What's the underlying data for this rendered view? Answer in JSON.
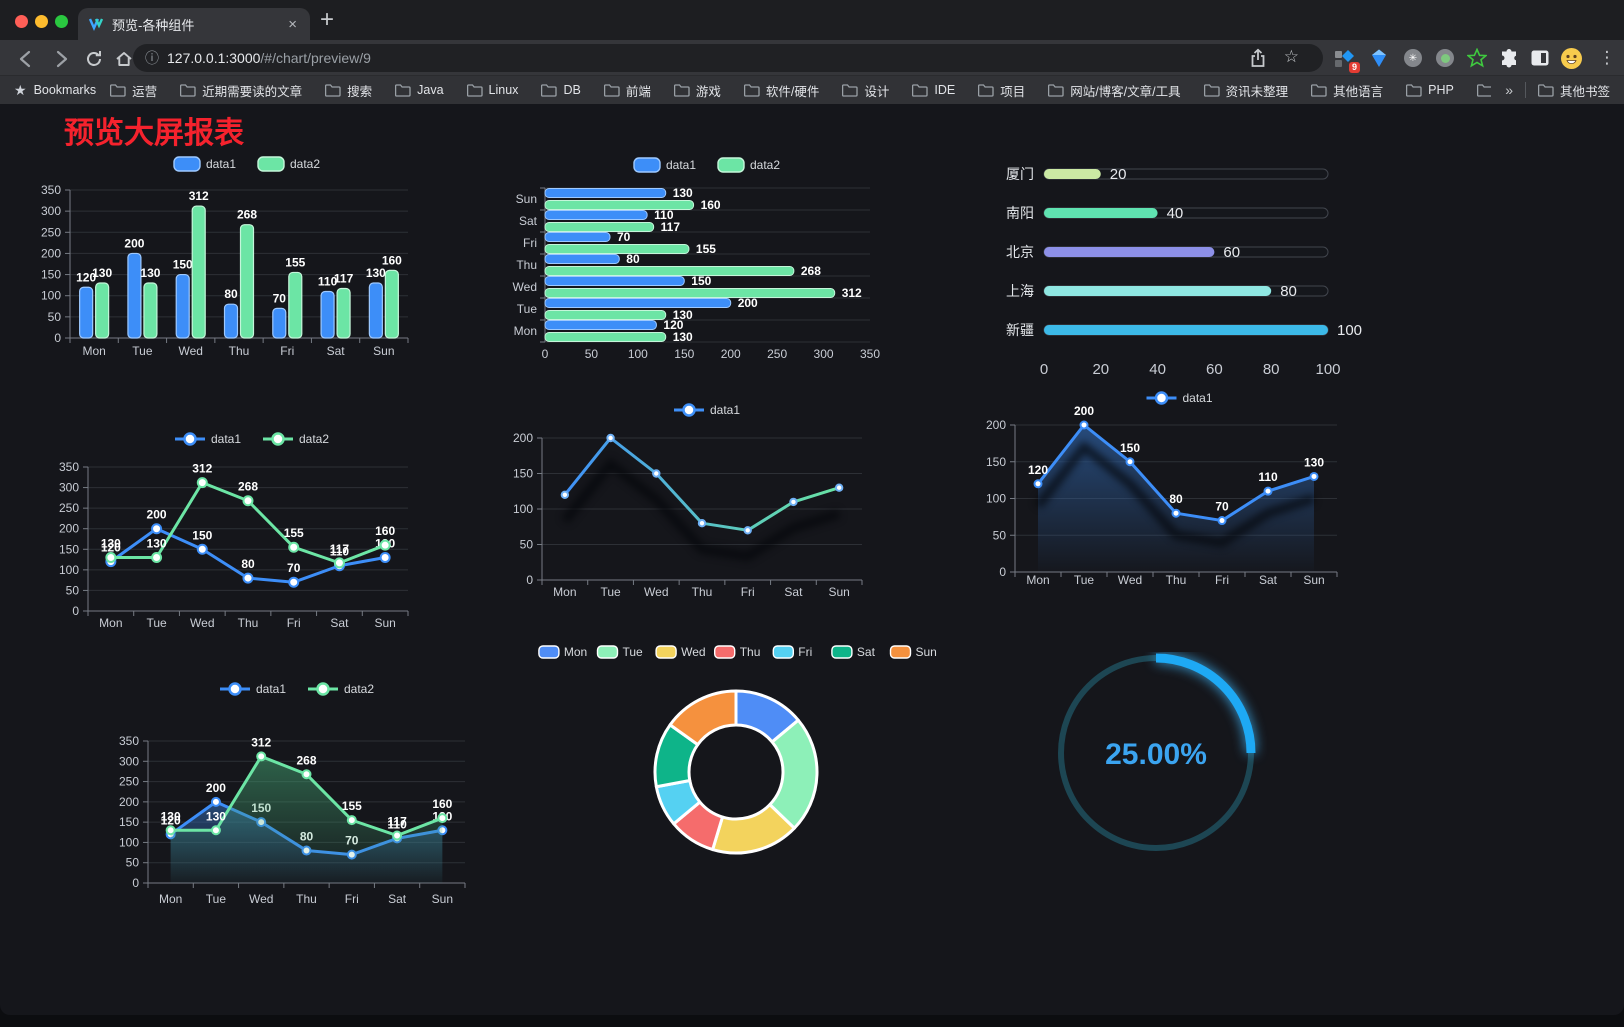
{
  "browser": {
    "tab_title": "预览-各种组件",
    "url": {
      "host": "127.0.0.1:3000",
      "path": "/#/chart/preview/9"
    },
    "bookmarks_bar": {
      "star_label": "Bookmarks",
      "folders": [
        "运营",
        "近期需要读的文章",
        "搜索",
        "Java",
        "Linux",
        "DB",
        "前端",
        "游戏",
        "软件/硬件",
        "设计",
        "IDE",
        "项目",
        "网站/博客/文章/工具",
        "资讯未整理",
        "其他语言",
        "PHP",
        "文件服务器"
      ],
      "overflow_chevron": "»",
      "other_bookmarks": "其他书签"
    },
    "extension_badge": "9"
  },
  "icons": {
    "close": "×",
    "plus": "+",
    "menu": "⋮",
    "info": "ⓘ",
    "star": "★",
    "star_outline": "☆",
    "asterisk": "✳"
  },
  "page": {
    "title": "预览大屏报表",
    "title_color": "#f5222d"
  },
  "chart_data": [
    {
      "id": "grouped-bar",
      "type": "bar",
      "categories": [
        "Mon",
        "Tue",
        "Wed",
        "Thu",
        "Fri",
        "Sat",
        "Sun"
      ],
      "series": [
        {
          "name": "data1",
          "color": "#3d8ef8",
          "edge": "#9ec9ff",
          "values": [
            120,
            200,
            150,
            80,
            70,
            110,
            130
          ]
        },
        {
          "name": "data2",
          "color": "#6ce5a5",
          "edge": "#c4f6da",
          "values": [
            130,
            130,
            312,
            268,
            155,
            117,
            160
          ]
        }
      ],
      "ylim": [
        0,
        350
      ],
      "yticks": [
        0,
        50,
        100,
        150,
        200,
        250,
        300,
        350
      ],
      "legend_position": "top",
      "grid": true,
      "show_labels": true
    },
    {
      "id": "horizontal-bar",
      "type": "hbar",
      "categories": [
        "Sun",
        "Sat",
        "Fri",
        "Thu",
        "Wed",
        "Tue",
        "Mon"
      ],
      "series": [
        {
          "name": "data1",
          "color": "#3d8ef8",
          "edge": "#9ec9ff",
          "values": [
            130,
            110,
            70,
            80,
            150,
            200,
            120
          ]
        },
        {
          "name": "data2",
          "color": "#6ce5a5",
          "edge": "#c4f6da",
          "values": [
            160,
            117,
            155,
            268,
            312,
            130,
            130
          ]
        }
      ],
      "xlim": [
        0,
        350
      ],
      "xticks": [
        0,
        50,
        100,
        150,
        200,
        250,
        300,
        350
      ],
      "legend_position": "top",
      "grid": true,
      "show_labels": true
    },
    {
      "id": "progress-bars",
      "type": "progress",
      "categories": [
        "厦门",
        "南阳",
        "北京",
        "上海",
        "新疆"
      ],
      "values": [
        20,
        40,
        60,
        80,
        100
      ],
      "colors": [
        "#cbe9a4",
        "#5fe3b1",
        "#8d90e8",
        "#8fe7e2",
        "#3cb9e8"
      ],
      "xlim": [
        0,
        100
      ],
      "xticks": [
        0,
        20,
        40,
        60,
        80,
        100
      ]
    },
    {
      "id": "line-dual",
      "type": "line",
      "categories": [
        "Mon",
        "Tue",
        "Wed",
        "Thu",
        "Fri",
        "Sat",
        "Sun"
      ],
      "series": [
        {
          "name": "data1",
          "color": "#3d8ef8",
          "values": [
            120,
            200,
            150,
            80,
            70,
            110,
            130
          ]
        },
        {
          "name": "data2",
          "color": "#6ce5a5",
          "values": [
            130,
            130,
            312,
            268,
            155,
            117,
            160
          ]
        }
      ],
      "ylim": [
        0,
        350
      ],
      "yticks": [
        0,
        50,
        100,
        150,
        200,
        250,
        300,
        350
      ],
      "legend_position": "top",
      "grid": true,
      "show_labels": true,
      "shadow": false
    },
    {
      "id": "line-gradient",
      "type": "line",
      "categories": [
        "Mon",
        "Tue",
        "Wed",
        "Thu",
        "Fri",
        "Sat",
        "Sun"
      ],
      "series": [
        {
          "name": "data1",
          "gradient": [
            "#3f90f8",
            "#57c0c8",
            "#69e3a3"
          ],
          "ring": "#6fb0f5",
          "values": [
            120,
            200,
            150,
            80,
            70,
            110,
            130
          ]
        }
      ],
      "ylim": [
        0,
        200
      ],
      "yticks": [
        0,
        50,
        100,
        150,
        200
      ],
      "legend_position": "top",
      "grid": true,
      "show_labels": false,
      "shadow": true
    },
    {
      "id": "line-area",
      "type": "line",
      "categories": [
        "Mon",
        "Tue",
        "Wed",
        "Thu",
        "Fri",
        "Sat",
        "Sun"
      ],
      "series": [
        {
          "name": "data1",
          "color": "#3d8ef8",
          "area": [
            "rgba(47,98,165,0.70)",
            "rgba(47,98,165,0.02)"
          ],
          "values": [
            120,
            200,
            150,
            80,
            70,
            110,
            130
          ]
        }
      ],
      "ylim": [
        0,
        200
      ],
      "yticks": [
        0,
        50,
        100,
        150,
        200
      ],
      "legend_position": "top",
      "grid": true,
      "show_labels": true,
      "shadow": true
    },
    {
      "id": "area-dual",
      "type": "line",
      "categories": [
        "Mon",
        "Tue",
        "Wed",
        "Thu",
        "Fri",
        "Sat",
        "Sun"
      ],
      "series": [
        {
          "name": "data1",
          "color": "#3d8ef8",
          "area": [
            "rgba(49,104,173,0.62)",
            "rgba(49,104,173,0.03)"
          ],
          "values": [
            120,
            200,
            150,
            80,
            70,
            110,
            130
          ]
        },
        {
          "name": "data2",
          "color": "#6ce5a5",
          "area": [
            "rgba(66,160,112,0.55)",
            "rgba(66,160,112,0.03)"
          ],
          "values": [
            130,
            130,
            312,
            268,
            155,
            117,
            160
          ]
        }
      ],
      "ylim": [
        0,
        350
      ],
      "yticks": [
        0,
        50,
        100,
        150,
        200,
        250,
        300,
        350
      ],
      "legend_position": "top",
      "grid": true,
      "show_labels": true,
      "shadow": false
    },
    {
      "id": "donut-pie",
      "type": "pie",
      "categories": [
        "Mon",
        "Tue",
        "Wed",
        "Thu",
        "Fri",
        "Sat",
        "Sun"
      ],
      "values": [
        120,
        200,
        150,
        80,
        70,
        110,
        130
      ],
      "colors": [
        "#4f8df6",
        "#8df0b8",
        "#f3d35d",
        "#f56c6c",
        "#55d1f2",
        "#0eb489",
        "#f5913e"
      ],
      "legend_position": "top",
      "border_color": "#ffffff"
    },
    {
      "id": "gauge-percent",
      "type": "gauge",
      "value": 25,
      "label": "25.00%",
      "color": "#1ea9f4",
      "track": "#1d4653",
      "text_color": "#3ba4f0"
    }
  ]
}
